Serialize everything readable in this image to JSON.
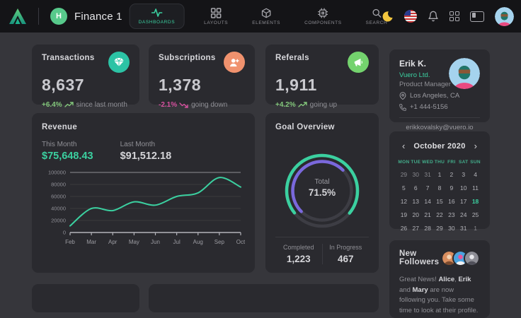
{
  "colors": {
    "accent": "#3bd0a0",
    "success": "#84c87c",
    "danger": "#d6519f",
    "purple": "#7a68dc",
    "icon_teal": "#2cc3a5",
    "icon_orange": "#f0926e",
    "icon_green": "#74d36e"
  },
  "navbar": {
    "app_title": "Finance 1",
    "workspace_badge": "H",
    "items": [
      {
        "label": "DASHBOARDS",
        "active": true
      },
      {
        "label": "LAYOUTS",
        "active": false
      },
      {
        "label": "ELEMENTS",
        "active": false
      },
      {
        "label": "COMPONENTS",
        "active": false
      },
      {
        "label": "SEARCH",
        "active": false
      }
    ]
  },
  "stats": [
    {
      "title": "Transactions",
      "value": "8,637",
      "delta": "+6.4%",
      "note": "since last month",
      "trend": "up",
      "icon": "gem-icon",
      "icon_bg": "#2cc3a5",
      "delta_color": "#84c87c"
    },
    {
      "title": "Subscriptions",
      "value": "1,378",
      "delta": "-2.1%",
      "note": "going down",
      "trend": "down",
      "icon": "user-plus-icon",
      "icon_bg": "#f0926e",
      "delta_color": "#d6519f"
    },
    {
      "title": "Referals",
      "value": "1,911",
      "delta": "+4.2%",
      "note": "going up",
      "trend": "up",
      "icon": "megaphone-icon",
      "icon_bg": "#74d36e",
      "delta_color": "#84c87c"
    }
  ],
  "revenue": {
    "title": "Revenue",
    "this_month_label": "This Month",
    "this_month_value": "$75,648.43",
    "last_month_label": "Last Month",
    "last_month_value": "$91,512.18"
  },
  "chart_data": [
    {
      "type": "line",
      "title": "Revenue",
      "x": [
        "Feb",
        "Mar",
        "Apr",
        "May",
        "Jun",
        "Jul",
        "Aug",
        "Sep",
        "Oct"
      ],
      "values": [
        11000,
        40000,
        36500,
        51000,
        45500,
        60000,
        66000,
        91500,
        75648
      ],
      "ylim": [
        0,
        100000
      ],
      "yticks": [
        0,
        20000,
        40000,
        60000,
        80000,
        100000
      ],
      "line_color": "#3bd0a0",
      "grid": "horizontal, faint; top gridline emphasized",
      "legend": "none"
    },
    {
      "type": "gauge",
      "title": "Goal Overview",
      "total_percent": 71.5,
      "completed": 1223,
      "in_progress": 467,
      "outer_color": "#3bd0a0",
      "inner_color": "#7a68dc",
      "inner_percent": 50
    }
  ],
  "goal": {
    "title": "Goal Overview",
    "center_label": "Total",
    "center_value": "71.5%",
    "completed_label": "Completed",
    "completed_value": "1,223",
    "in_progress_label": "In Progress",
    "in_progress_value": "467"
  },
  "profile": {
    "name": "Erik K.",
    "company": "Vuero Ltd.",
    "role": "Product Manager",
    "location": "Los Angeles, CA",
    "phone": "+1 444-5156",
    "email": "erikkovalsky@vuero.io"
  },
  "calendar": {
    "month": "October 2020",
    "prev": "‹",
    "next": "›",
    "weekdays": [
      "MON",
      "TUE",
      "WED",
      "THU",
      "FRI",
      "SAT",
      "SUN"
    ],
    "weeks": [
      [
        {
          "t": "29",
          "o": 1
        },
        {
          "t": "30",
          "o": 1
        },
        {
          "t": "31",
          "o": 1
        },
        {
          "t": "1"
        },
        {
          "t": "2"
        },
        {
          "t": "3"
        },
        {
          "t": "4"
        }
      ],
      [
        {
          "t": "5"
        },
        {
          "t": "6"
        },
        {
          "t": "7"
        },
        {
          "t": "8"
        },
        {
          "t": "9"
        },
        {
          "t": "10"
        },
        {
          "t": "11"
        }
      ],
      [
        {
          "t": "12"
        },
        {
          "t": "13"
        },
        {
          "t": "14"
        },
        {
          "t": "15"
        },
        {
          "t": "16"
        },
        {
          "t": "17"
        },
        {
          "t": "18",
          "s": 1
        }
      ],
      [
        {
          "t": "19"
        },
        {
          "t": "20"
        },
        {
          "t": "21"
        },
        {
          "t": "22"
        },
        {
          "t": "23"
        },
        {
          "t": "24"
        },
        {
          "t": "25"
        }
      ],
      [
        {
          "t": "26"
        },
        {
          "t": "27"
        },
        {
          "t": "28"
        },
        {
          "t": "29"
        },
        {
          "t": "30"
        },
        {
          "t": "31"
        },
        {
          "t": "1",
          "o": 1
        }
      ]
    ]
  },
  "followers": {
    "title": "New Followers",
    "message_segments": [
      {
        "t": "Great News! "
      },
      {
        "t": "Alice",
        "b": 1
      },
      {
        "t": ", "
      },
      {
        "t": "Erik",
        "b": 1
      },
      {
        "t": " and "
      },
      {
        "t": "Mary",
        "b": 1
      },
      {
        "t": " are now following you. Take some time to look at their profile."
      }
    ]
  }
}
